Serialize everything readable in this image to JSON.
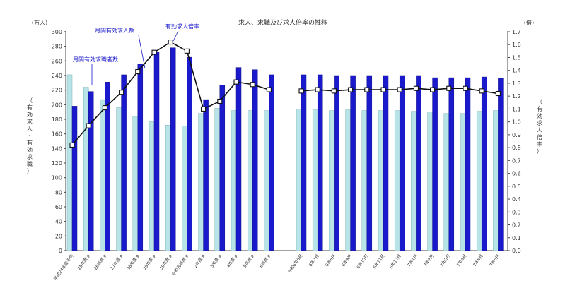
{
  "chart_data": {
    "type": "bar",
    "title": "求人、求職及び求人倍率の推移",
    "y_left_unit": "（万人）",
    "y_right_unit": "（倍）",
    "y_left_label": "（有効求人・有効求職）",
    "y_right_label": "（有効求人倍率）",
    "y_left_lim": [
      0,
      300
    ],
    "y_left_ticks": [
      0,
      20,
      40,
      60,
      80,
      100,
      120,
      140,
      160,
      180,
      200,
      220,
      240,
      260,
      280,
      300
    ],
    "y_right_lim": [
      0.0,
      1.7
    ],
    "y_right_ticks": [
      "0.0",
      "0.1",
      "0.2",
      "0.3",
      "0.4",
      "0.5",
      "0.6",
      "0.7",
      "0.8",
      "0.9",
      "1.0",
      "1.1",
      "1.2",
      "1.3",
      "1.4",
      "1.5",
      "1.6",
      "1.7"
    ],
    "categories": [
      "平成24年度平均",
      "25年度 p",
      "26年度 p",
      "27年度 p",
      "28年度 p",
      "29年度 p",
      "30年度 p",
      "令和元年度 p",
      "2年度 p",
      "3年度 p",
      "4年度 p",
      "5年度 p",
      "6年度 p",
      "令和6年6月",
      "6年7月",
      "6年8月",
      "6年9月",
      "6年10月",
      "6年11月",
      "6年12月",
      "7年1月",
      "7年2月",
      "7年3月",
      "7年4月",
      "7年5月",
      "7年6月"
    ],
    "series": [
      {
        "name": "月間有効求職者数",
        "type": "bar",
        "axis": "left",
        "color": "#b8e4e8",
        "values": [
          241,
          224,
          207,
          196,
          184,
          177,
          172,
          171,
          188,
          195,
          192,
          192,
          192,
          194,
          193,
          192,
          193,
          192,
          192,
          192,
          191,
          190,
          188,
          188,
          191,
          192
        ]
      },
      {
        "name": "月間有効求人数",
        "type": "bar",
        "axis": "left",
        "color": "#1a1acc",
        "values": [
          198,
          218,
          231,
          241,
          256,
          272,
          278,
          265,
          207,
          227,
          251,
          248,
          241,
          241,
          241,
          240,
          240,
          240,
          240,
          240,
          240,
          237,
          237,
          237,
          238,
          236
        ]
      },
      {
        "name": "有効求人倍率",
        "type": "line",
        "axis": "right",
        "color": "#111111",
        "values": [
          0.82,
          0.97,
          1.11,
          1.23,
          1.39,
          1.54,
          1.62,
          1.55,
          1.1,
          1.16,
          1.31,
          1.29,
          1.25,
          1.24,
          1.25,
          1.24,
          1.25,
          1.25,
          1.25,
          1.25,
          1.26,
          1.25,
          1.26,
          1.26,
          1.24,
          1.22
        ]
      }
    ],
    "annotations": [
      {
        "text": "月間有効求職者数",
        "series": 0
      },
      {
        "text": "月間有効求人数",
        "series": 1
      },
      {
        "text": "有効求人倍率",
        "series": 2
      }
    ],
    "colors": {
      "seeker": "#b8e4e8",
      "opening": "#1a1acc",
      "ratio_line": "#111111",
      "annotation": "#1a1acc"
    },
    "grid": false
  }
}
